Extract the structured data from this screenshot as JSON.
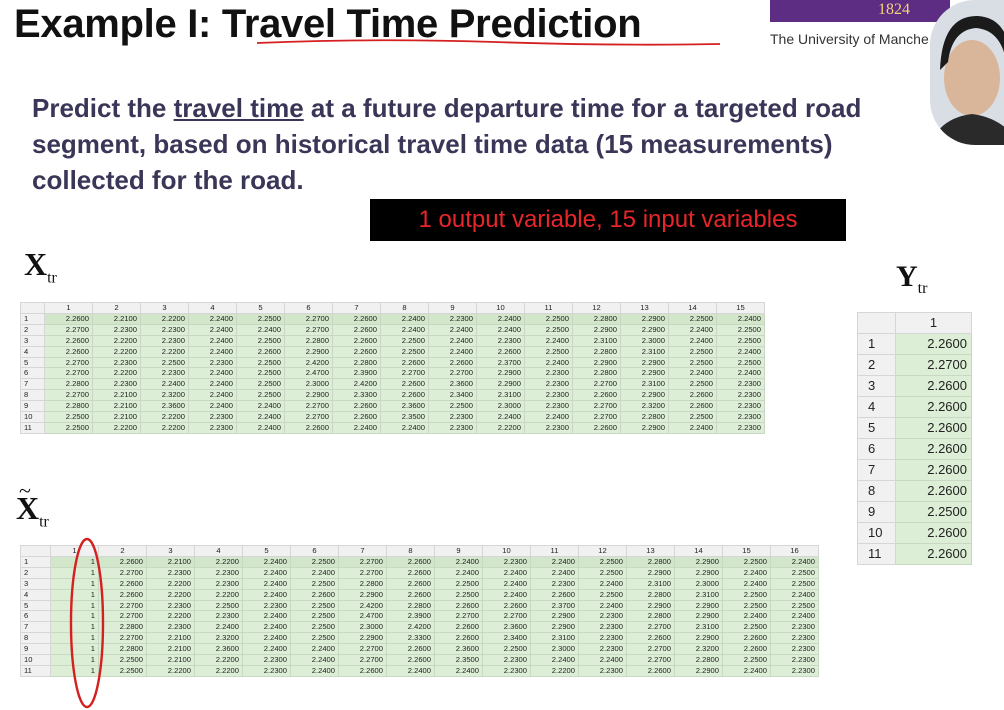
{
  "slide": {
    "title": "Example I: Travel Time Prediction",
    "logo": {
      "year": "1824",
      "university": "The University of Manche"
    },
    "description": {
      "before": "Predict the ",
      "underlined": "travel time",
      "after": " at a future departure time for a targeted road segment, based on historical travel time data (15 measurements) collected for the road."
    },
    "banner": "1 output variable, 15 input variables",
    "labels": {
      "x": "X",
      "x_sub": "tr",
      "xt": "X",
      "xt_sub": "tr",
      "xt_accent": "~",
      "y": "Y",
      "y_sub": "tr"
    },
    "colors": {
      "annotation_red": "#d42020",
      "cell_green": "#ddeed6",
      "banner_text": "#e8262a"
    }
  },
  "x_table": {
    "columns": [
      "",
      "1",
      "2",
      "3",
      "4",
      "5",
      "6",
      "7",
      "8",
      "9",
      "10",
      "11",
      "12",
      "13",
      "14",
      "15"
    ],
    "rows": [
      [
        "1",
        "2.2600",
        "2.2100",
        "2.2200",
        "2.2400",
        "2.2500",
        "2.2700",
        "2.2600",
        "2.2400",
        "2.2300",
        "2.2400",
        "2.2500",
        "2.2800",
        "2.2900",
        "2.2500",
        "2.2400"
      ],
      [
        "2",
        "2.2700",
        "2.2300",
        "2.2300",
        "2.2400",
        "2.2400",
        "2.2700",
        "2.2600",
        "2.2400",
        "2.2400",
        "2.2400",
        "2.2500",
        "2.2900",
        "2.2900",
        "2.2400",
        "2.2500"
      ],
      [
        "3",
        "2.2600",
        "2.2200",
        "2.2300",
        "2.2400",
        "2.2500",
        "2.2800",
        "2.2600",
        "2.2500",
        "2.2400",
        "2.2300",
        "2.2400",
        "2.3100",
        "2.3000",
        "2.2400",
        "2.2500"
      ],
      [
        "4",
        "2.2600",
        "2.2200",
        "2.2200",
        "2.2400",
        "2.2600",
        "2.2900",
        "2.2600",
        "2.2500",
        "2.2400",
        "2.2600",
        "2.2500",
        "2.2800",
        "2.3100",
        "2.2500",
        "2.2400"
      ],
      [
        "5",
        "2.2700",
        "2.2300",
        "2.2500",
        "2.2300",
        "2.2500",
        "2.4200",
        "2.2800",
        "2.2600",
        "2.2600",
        "2.3700",
        "2.2400",
        "2.2900",
        "2.2900",
        "2.2500",
        "2.2500"
      ],
      [
        "6",
        "2.2700",
        "2.2200",
        "2.2300",
        "2.2400",
        "2.2500",
        "2.4700",
        "2.3900",
        "2.2700",
        "2.2700",
        "2.2900",
        "2.2300",
        "2.2800",
        "2.2900",
        "2.2400",
        "2.2400"
      ],
      [
        "7",
        "2.2800",
        "2.2300",
        "2.2400",
        "2.2400",
        "2.2500",
        "2.3000",
        "2.4200",
        "2.2600",
        "2.3600",
        "2.2900",
        "2.2300",
        "2.2700",
        "2.3100",
        "2.2500",
        "2.2300"
      ],
      [
        "8",
        "2.2700",
        "2.2100",
        "2.3200",
        "2.2400",
        "2.2500",
        "2.2900",
        "2.3300",
        "2.2600",
        "2.3400",
        "2.3100",
        "2.2300",
        "2.2600",
        "2.2900",
        "2.2600",
        "2.2300"
      ],
      [
        "9",
        "2.2800",
        "2.2100",
        "2.3600",
        "2.2400",
        "2.2400",
        "2.2700",
        "2.2600",
        "2.3600",
        "2.2500",
        "2.3000",
        "2.2300",
        "2.2700",
        "2.3200",
        "2.2600",
        "2.2300"
      ],
      [
        "10",
        "2.2500",
        "2.2100",
        "2.2200",
        "2.2300",
        "2.2400",
        "2.2700",
        "2.2600",
        "2.3500",
        "2.2300",
        "2.2400",
        "2.2400",
        "2.2700",
        "2.2800",
        "2.2500",
        "2.2300"
      ],
      [
        "11",
        "2.2500",
        "2.2200",
        "2.2200",
        "2.2300",
        "2.2400",
        "2.2600",
        "2.2400",
        "2.2400",
        "2.2300",
        "2.2200",
        "2.2300",
        "2.2600",
        "2.2900",
        "2.2400",
        "2.2300"
      ]
    ]
  },
  "xt_table": {
    "columns": [
      "",
      "1",
      "2",
      "3",
      "4",
      "5",
      "6",
      "7",
      "8",
      "9",
      "10",
      "11",
      "12",
      "13",
      "14",
      "15",
      "16"
    ],
    "rows": [
      [
        "1",
        "1",
        "2.2600",
        "2.2100",
        "2.2200",
        "2.2400",
        "2.2500",
        "2.2700",
        "2.2600",
        "2.2400",
        "2.2300",
        "2.2400",
        "2.2500",
        "2.2800",
        "2.2900",
        "2.2500",
        "2.2400"
      ],
      [
        "2",
        "1",
        "2.2700",
        "2.2300",
        "2.2300",
        "2.2400",
        "2.2400",
        "2.2700",
        "2.2600",
        "2.2400",
        "2.2400",
        "2.2400",
        "2.2500",
        "2.2900",
        "2.2900",
        "2.2400",
        "2.2500"
      ],
      [
        "3",
        "1",
        "2.2600",
        "2.2200",
        "2.2300",
        "2.2400",
        "2.2500",
        "2.2800",
        "2.2600",
        "2.2500",
        "2.2400",
        "2.2300",
        "2.2400",
        "2.3100",
        "2.3000",
        "2.2400",
        "2.2500"
      ],
      [
        "4",
        "1",
        "2.2600",
        "2.2200",
        "2.2200",
        "2.2400",
        "2.2600",
        "2.2900",
        "2.2600",
        "2.2500",
        "2.2400",
        "2.2600",
        "2.2500",
        "2.2800",
        "2.3100",
        "2.2500",
        "2.2400"
      ],
      [
        "5",
        "1",
        "2.2700",
        "2.2300",
        "2.2500",
        "2.2300",
        "2.2500",
        "2.4200",
        "2.2800",
        "2.2600",
        "2.2600",
        "2.3700",
        "2.2400",
        "2.2900",
        "2.2900",
        "2.2500",
        "2.2500"
      ],
      [
        "6",
        "1",
        "2.2700",
        "2.2200",
        "2.2300",
        "2.2400",
        "2.2500",
        "2.4700",
        "2.3900",
        "2.2700",
        "2.2700",
        "2.2900",
        "2.2300",
        "2.2800",
        "2.2900",
        "2.2400",
        "2.2400"
      ],
      [
        "7",
        "1",
        "2.2800",
        "2.2300",
        "2.2400",
        "2.2400",
        "2.2500",
        "2.3000",
        "2.4200",
        "2.2600",
        "2.3600",
        "2.2900",
        "2.2300",
        "2.2700",
        "2.3100",
        "2.2500",
        "2.2300"
      ],
      [
        "8",
        "1",
        "2.2700",
        "2.2100",
        "2.3200",
        "2.2400",
        "2.2500",
        "2.2900",
        "2.3300",
        "2.2600",
        "2.3400",
        "2.3100",
        "2.2300",
        "2.2600",
        "2.2900",
        "2.2600",
        "2.2300"
      ],
      [
        "9",
        "1",
        "2.2800",
        "2.2100",
        "2.3600",
        "2.2400",
        "2.2400",
        "2.2700",
        "2.2600",
        "2.3600",
        "2.2500",
        "2.3000",
        "2.2300",
        "2.2700",
        "2.3200",
        "2.2600",
        "2.2300"
      ],
      [
        "10",
        "1",
        "2.2500",
        "2.2100",
        "2.2200",
        "2.2300",
        "2.2400",
        "2.2700",
        "2.2600",
        "2.3500",
        "2.2300",
        "2.2400",
        "2.2400",
        "2.2700",
        "2.2800",
        "2.2500",
        "2.2300"
      ],
      [
        "11",
        "1",
        "2.2500",
        "2.2200",
        "2.2200",
        "2.2300",
        "2.2400",
        "2.2600",
        "2.2400",
        "2.2400",
        "2.2300",
        "2.2200",
        "2.2300",
        "2.2600",
        "2.2900",
        "2.2400",
        "2.2300"
      ]
    ]
  },
  "y_table": {
    "columns": [
      "",
      "1"
    ],
    "rows": [
      [
        "1",
        "2.2600"
      ],
      [
        "2",
        "2.2700"
      ],
      [
        "3",
        "2.2600"
      ],
      [
        "4",
        "2.2600"
      ],
      [
        "5",
        "2.2600"
      ],
      [
        "6",
        "2.2600"
      ],
      [
        "7",
        "2.2600"
      ],
      [
        "8",
        "2.2600"
      ],
      [
        "9",
        "2.2500"
      ],
      [
        "10",
        "2.2600"
      ],
      [
        "11",
        "2.2600"
      ]
    ]
  }
}
